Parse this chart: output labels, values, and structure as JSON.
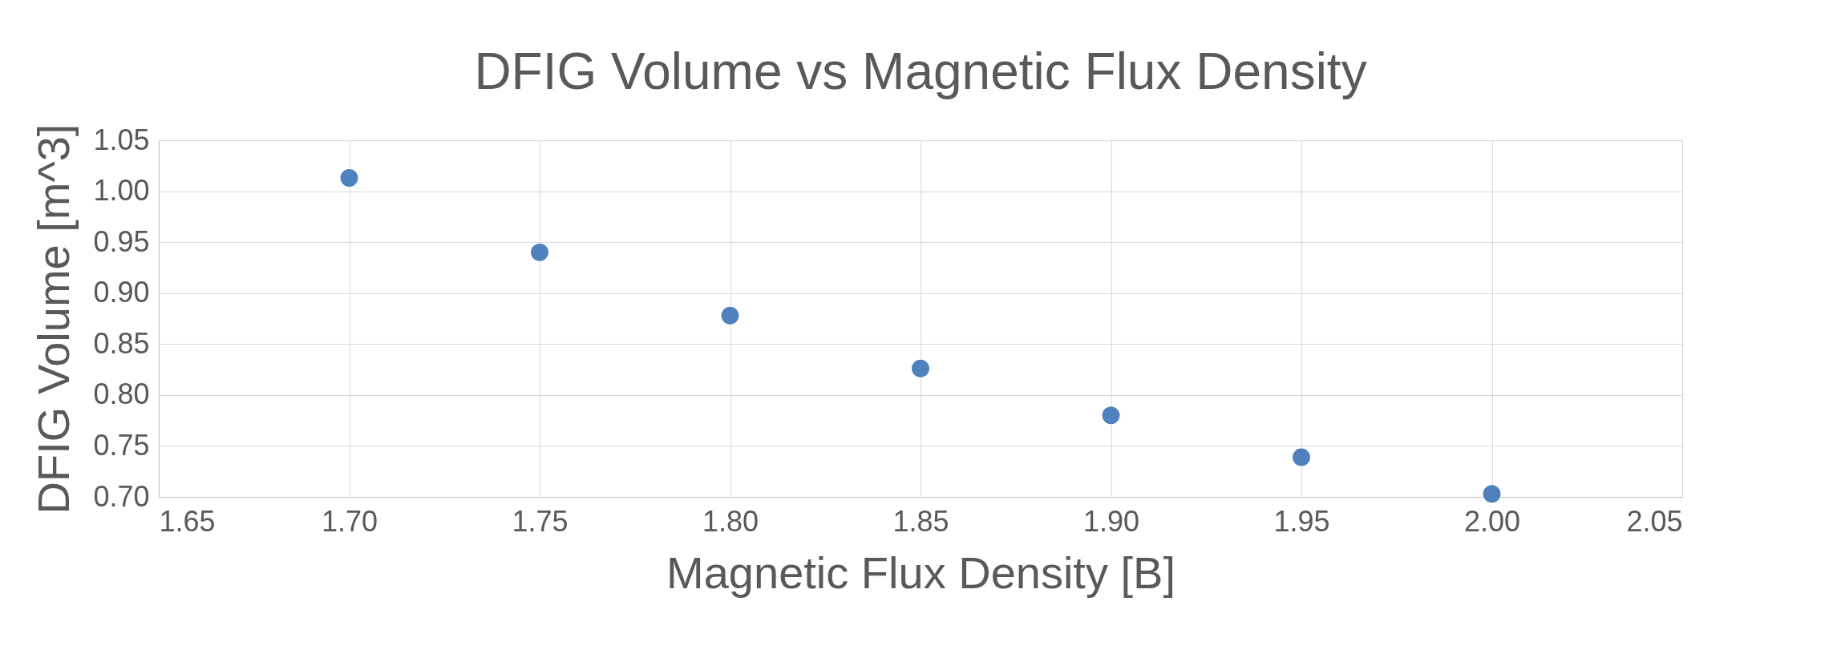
{
  "chart_data": {
    "type": "scatter",
    "title": "DFIG Volume vs Magnetic Flux Density",
    "xlabel": "Magnetic Flux Density [B]",
    "ylabel": "DFIG Volume [m^3]",
    "x": [
      1.7,
      1.75,
      1.8,
      1.85,
      1.9,
      1.95,
      2.0
    ],
    "series": [
      {
        "color": "#4f81bd",
        "values": [
          1.013,
          0.94,
          0.878,
          0.826,
          0.78,
          0.739,
          0.703
        ]
      }
    ],
    "xlim": [
      1.65,
      2.05
    ],
    "xticks": [
      {
        "value": 1.65,
        "label": "1.65"
      },
      {
        "value": 1.7,
        "label": "1.70"
      },
      {
        "value": 1.75,
        "label": "1.75"
      },
      {
        "value": 1.8,
        "label": "1.80"
      },
      {
        "value": 1.85,
        "label": "1.85"
      },
      {
        "value": 1.9,
        "label": "1.90"
      },
      {
        "value": 1.95,
        "label": "1.95"
      },
      {
        "value": 2.0,
        "label": "2.00"
      },
      {
        "value": 2.05,
        "label": "2.05"
      }
    ],
    "ylim": [
      0.7,
      1.05
    ],
    "yticks": [
      {
        "value": 0.7,
        "label": "0.70"
      },
      {
        "value": 0.75,
        "label": "0.75"
      },
      {
        "value": 0.8,
        "label": "0.80"
      },
      {
        "value": 0.85,
        "label": "0.85"
      },
      {
        "value": 0.9,
        "label": "0.90"
      },
      {
        "value": 0.95,
        "label": "0.95"
      },
      {
        "value": 1.0,
        "label": "1.00"
      },
      {
        "value": 1.05,
        "label": "1.05"
      }
    ],
    "grid": true,
    "marker": "circle"
  }
}
